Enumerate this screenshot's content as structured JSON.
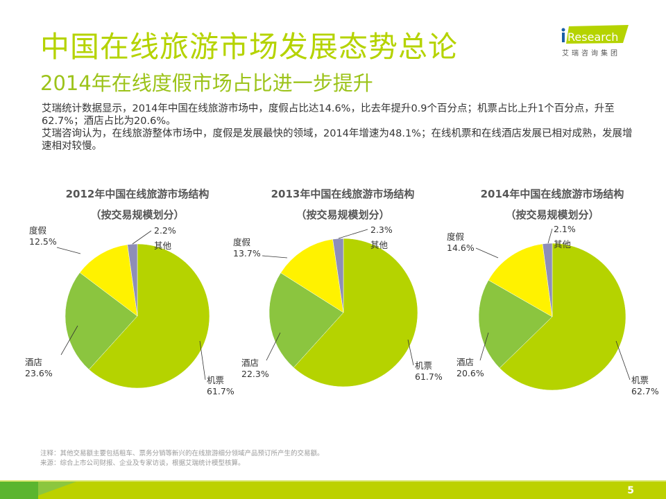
{
  "header": {
    "title": "中国在线旅游市场发展态势总论",
    "subtitle": "2014年在线度假市场占比进一步提升"
  },
  "logo": {
    "brand": "iResearch",
    "sub": "艾瑞咨询集团"
  },
  "body": [
    "艾瑞统计数据显示，2014年中国在线旅游市场中，度假占比达14.6%，比去年提升0.9个百分点；机票占比上升1个百分点，升至62.7%；酒店占比为20.6%。",
    "艾瑞咨询认为，在线旅游整体市场中，度假是发展最快的领域，2014年增速为48.1%；在线机票和在线酒店发展已相对成熟，发展增速相对较慢。"
  ],
  "colors": {
    "机票": "#b5d300",
    "酒店": "#8bc53f",
    "度假": "#fff200",
    "其他": "#8e8eb8"
  },
  "chart_data": [
    {
      "type": "pie",
      "title": "2012年中国在线旅游市场结构",
      "subtitle": "（按交易规模划分）",
      "categories": [
        "机票",
        "酒店",
        "度假",
        "其他"
      ],
      "values": [
        61.7,
        23.6,
        12.5,
        2.2
      ],
      "labels": [
        "61.7%",
        "23.6%",
        "12.5%",
        "2.2%"
      ]
    },
    {
      "type": "pie",
      "title": "2013年中国在线旅游市场结构",
      "subtitle": "（按交易规模划分）",
      "categories": [
        "机票",
        "酒店",
        "度假",
        "其他"
      ],
      "values": [
        61.7,
        22.3,
        13.7,
        2.3
      ],
      "labels": [
        "61.7%",
        "22.3%",
        "13.7%",
        "2.3%"
      ]
    },
    {
      "type": "pie",
      "title": "2014年中国在线旅游市场结构",
      "subtitle": "（按交易规模划分）",
      "categories": [
        "机票",
        "酒店",
        "度假",
        "其他"
      ],
      "values": [
        62.7,
        20.6,
        14.6,
        2.1
      ],
      "labels": [
        "62.7%",
        "20.6%",
        "14.6%",
        "2.1%"
      ]
    }
  ],
  "notes": [
    "注释：其他交易额主要包括租车、票务分销等新兴的在线旅游细分领域产品预订所产生的交易额。",
    "来源：综合上市公司财报、企业及专家访谈，根据艾瑞统计模型核算。"
  ],
  "page_number": "5"
}
